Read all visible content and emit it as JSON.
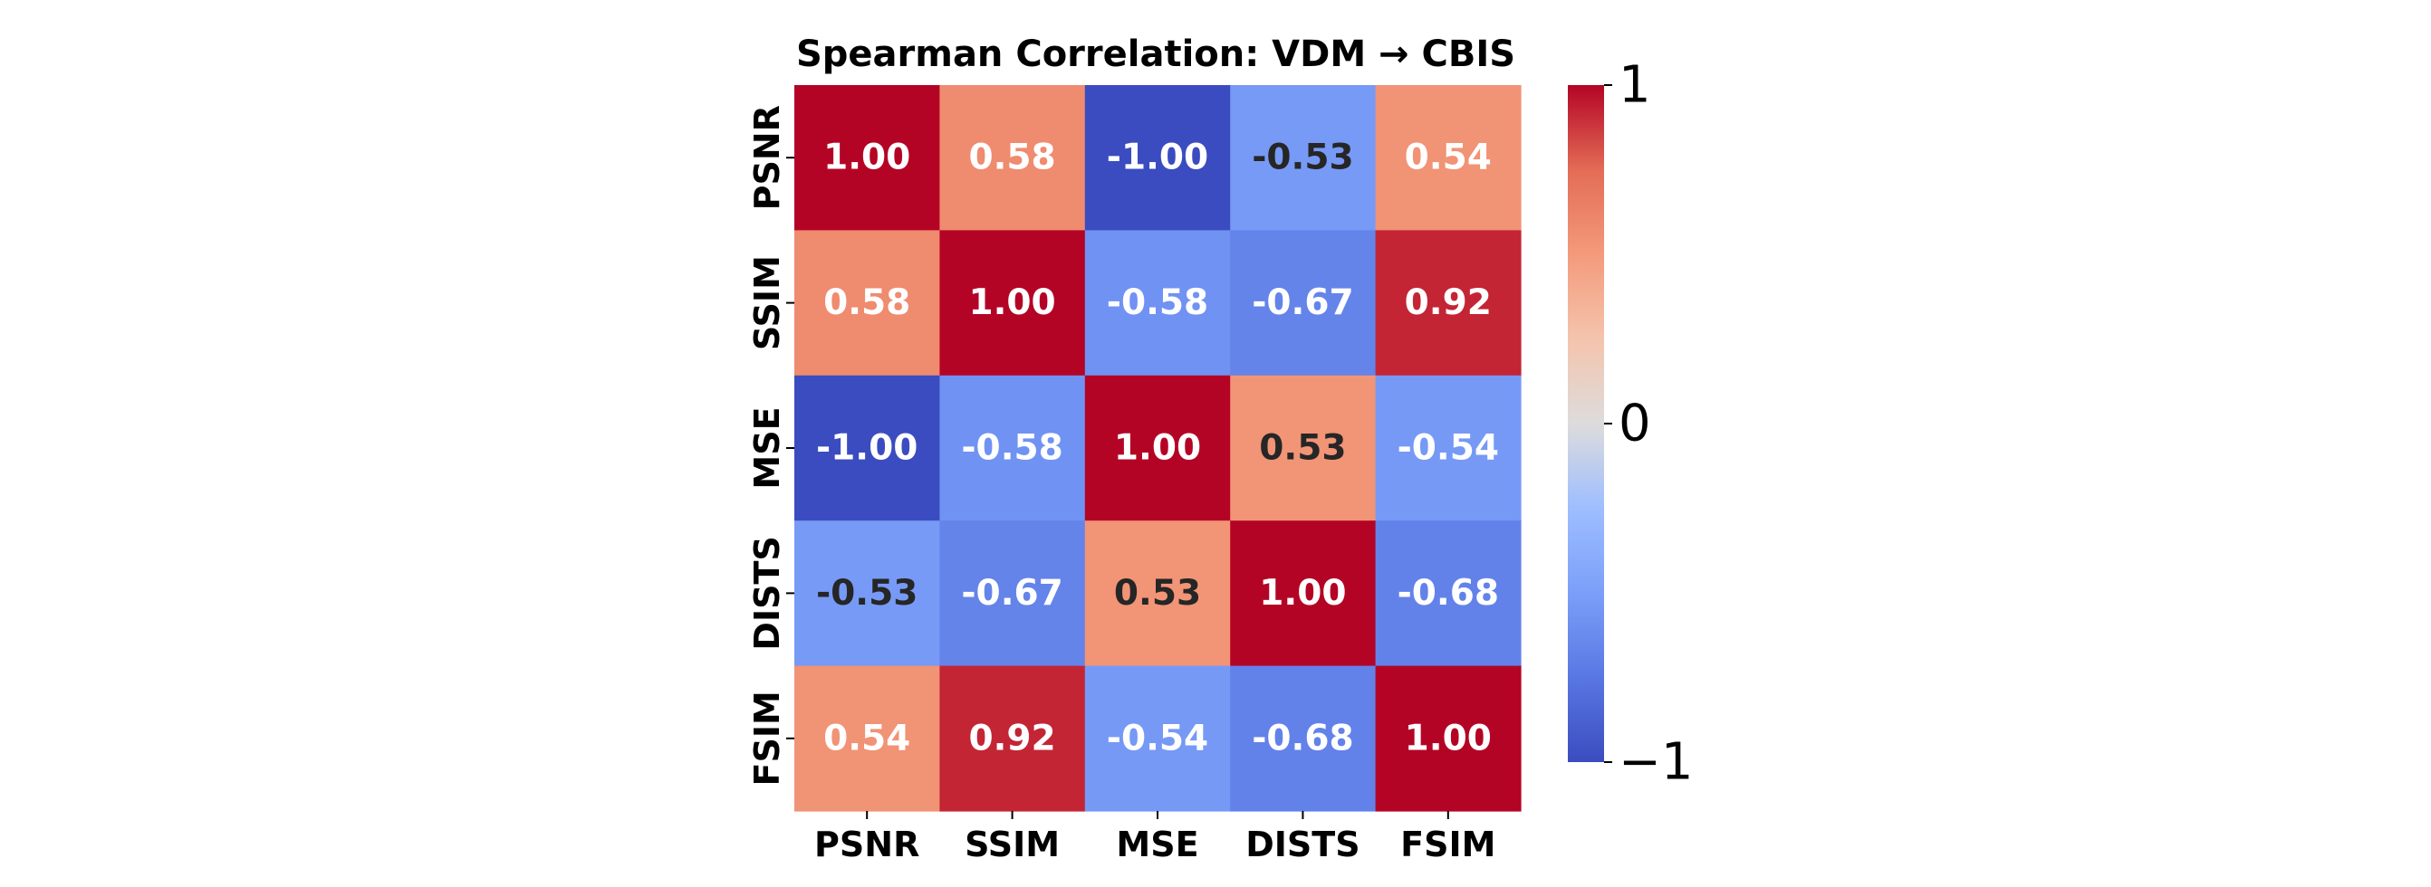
{
  "chart_data": {
    "type": "heatmap",
    "title": "Spearman Correlation: VDM → CBIS",
    "x_labels": [
      "PSNR",
      "SSIM",
      "MSE",
      "DISTS",
      "FSIM"
    ],
    "y_labels": [
      "PSNR",
      "SSIM",
      "MSE",
      "DISTS",
      "FSIM"
    ],
    "values": [
      [
        1.0,
        0.58,
        -1.0,
        -0.53,
        0.54
      ],
      [
        0.58,
        1.0,
        -0.58,
        -0.67,
        0.92
      ],
      [
        -1.0,
        -0.58,
        1.0,
        0.53,
        -0.54
      ],
      [
        -0.53,
        -0.67,
        0.53,
        1.0,
        -0.68
      ],
      [
        0.54,
        0.92,
        -0.54,
        -0.68,
        1.0
      ]
    ],
    "cell_labels": [
      [
        "1.00",
        "0.58",
        "-1.00",
        "-0.53",
        "0.54"
      ],
      [
        "0.58",
        "1.00",
        "-0.58",
        "-0.67",
        "0.92"
      ],
      [
        "-1.00",
        "-0.58",
        "1.00",
        "0.53",
        "-0.54"
      ],
      [
        "-0.53",
        "-0.67",
        "0.53",
        "1.00",
        "-0.68"
      ],
      [
        "0.54",
        "0.92",
        "-0.54",
        "-0.68",
        "1.00"
      ]
    ],
    "colormap": "coolwarm",
    "vmin": -1,
    "vmax": 1,
    "colorbar": {
      "ticks": [
        1,
        0,
        -1
      ],
      "tick_labels": [
        "1",
        "0",
        "−1"
      ]
    },
    "xlabel": "",
    "ylabel": ""
  }
}
